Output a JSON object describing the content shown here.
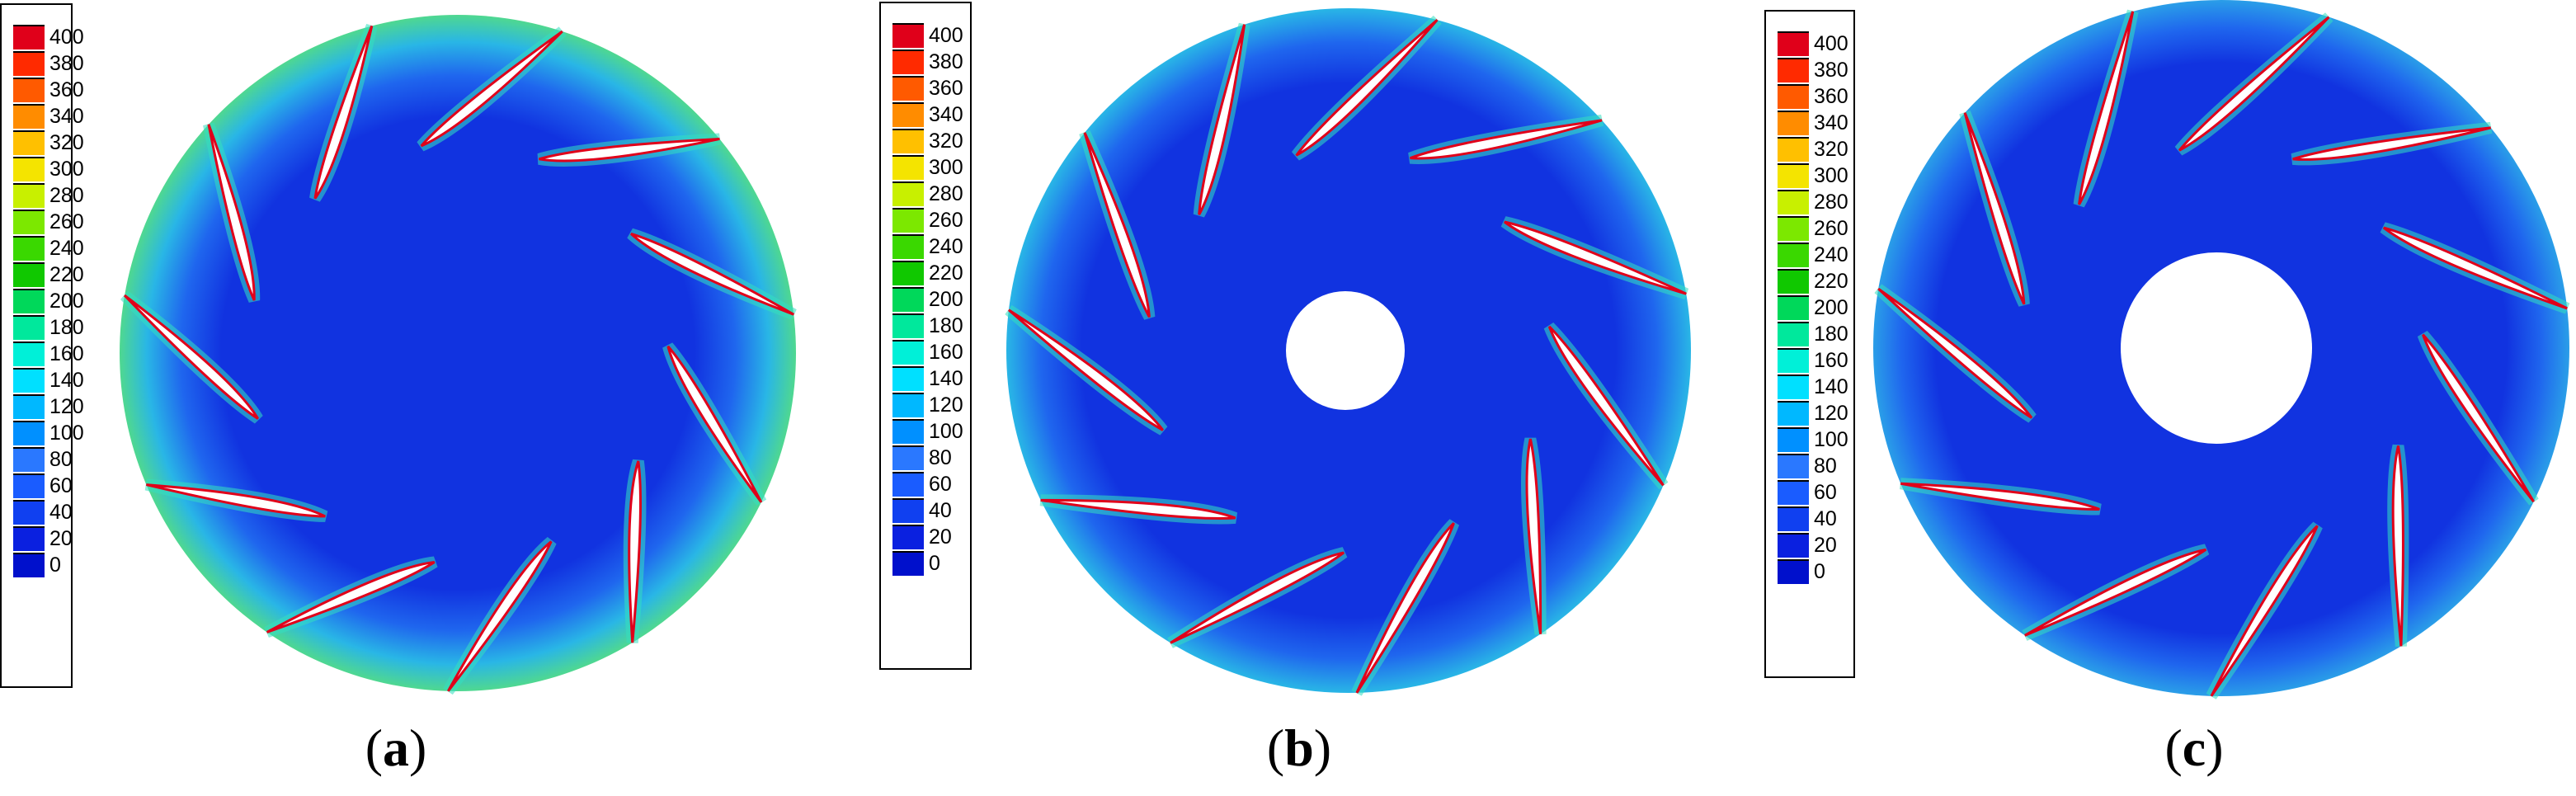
{
  "legend_ticks": [
    "400",
    "380",
    "360",
    "340",
    "320",
    "300",
    "280",
    "260",
    "240",
    "220",
    "200",
    "180",
    "160",
    "140",
    "120",
    "100",
    "80",
    "60",
    "40",
    "20",
    "0"
  ],
  "legend_colors": [
    "#e0001a",
    "#ff2a00",
    "#ff5a00",
    "#ff8c00",
    "#ffc000",
    "#f4e400",
    "#c8f000",
    "#7ce800",
    "#3ad800",
    "#10c800",
    "#00d85a",
    "#00e89c",
    "#00f0d8",
    "#00e0ff",
    "#00b8ff",
    "#0090ff",
    "#2a78ff",
    "#1a5cff",
    "#1040f0",
    "#0a20e0",
    "#0010cc"
  ],
  "panels": [
    {
      "caption_open": "(",
      "caption_letter": "a",
      "caption_close": ")"
    },
    {
      "caption_open": "(",
      "caption_letter": "b",
      "caption_close": ")"
    },
    {
      "caption_open": "(",
      "caption_letter": "c",
      "caption_close": ")"
    }
  ],
  "colors": {
    "background": "#ffffff",
    "low": "#1133e0",
    "mid": "#29c6e6",
    "high": "#e0001a"
  }
}
